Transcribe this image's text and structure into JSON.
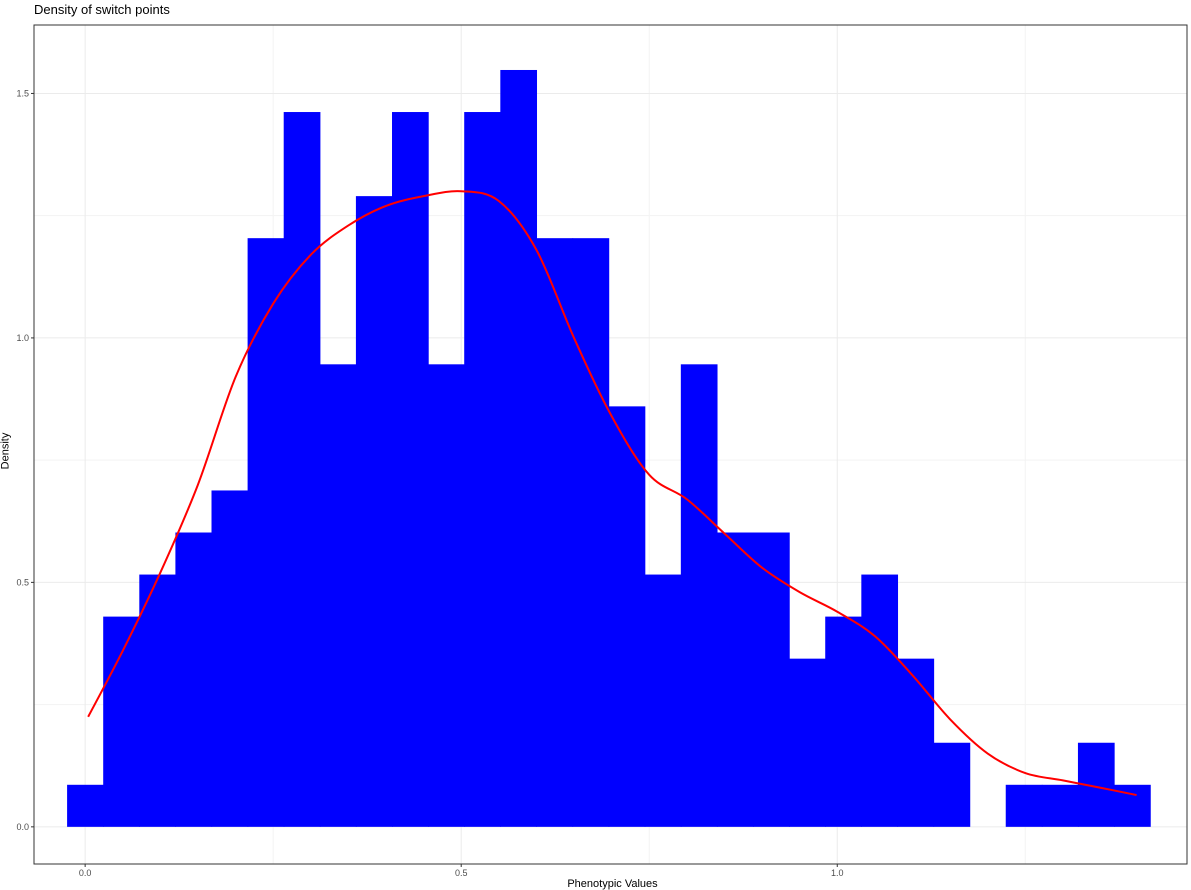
{
  "chart_data": {
    "type": "bar",
    "title": "Density of switch points",
    "xlabel": "Phenotypic Values",
    "ylabel": "Density",
    "xlim": [
      -0.068,
      1.465
    ],
    "ylim": [
      -0.076,
      1.64
    ],
    "x_ticks": [
      0.0,
      0.5,
      1.0
    ],
    "x_tick_labels": [
      "0.0",
      "0.5",
      "1.0"
    ],
    "y_ticks": [
      0.0,
      0.5,
      1.0,
      1.5
    ],
    "y_tick_labels": [
      "0.0",
      "0.5",
      "1.0",
      "1.5"
    ],
    "grid": true,
    "bins": {
      "start": -0.024,
      "width": 0.048,
      "values": [
        0.086,
        0.43,
        0.516,
        0.602,
        0.688,
        1.204,
        1.462,
        0.946,
        1.29,
        1.462,
        0.946,
        1.462,
        1.548,
        1.204,
        1.204,
        0.86,
        0.516,
        0.946,
        0.602,
        0.602,
        0.344,
        0.43,
        0.516,
        0.344,
        0.172,
        0,
        0.086,
        0.086,
        0.172,
        0.086
      ]
    },
    "density_curve": {
      "name": "",
      "color": "#ff0000",
      "x": [
        0.004,
        0.05,
        0.1,
        0.15,
        0.2,
        0.25,
        0.3,
        0.35,
        0.4,
        0.45,
        0.5,
        0.55,
        0.6,
        0.65,
        0.7,
        0.75,
        0.8,
        0.85,
        0.9,
        0.95,
        1.0,
        1.05,
        1.1,
        1.15,
        1.2,
        1.25,
        1.3,
        1.35,
        1.398
      ],
      "y": [
        0.225,
        0.36,
        0.52,
        0.7,
        0.92,
        1.07,
        1.17,
        1.23,
        1.27,
        1.29,
        1.3,
        1.28,
        1.18,
        1.0,
        0.84,
        0.72,
        0.67,
        0.6,
        0.53,
        0.48,
        0.44,
        0.39,
        0.31,
        0.22,
        0.15,
        0.11,
        0.095,
        0.08,
        0.065
      ]
    },
    "bar_color": "#0000ff"
  }
}
